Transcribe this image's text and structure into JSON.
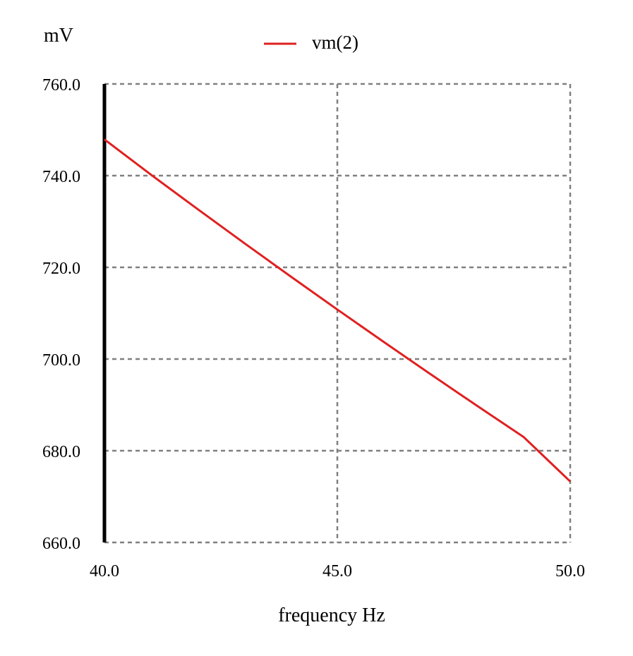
{
  "chart_data": {
    "type": "line",
    "xlabel": "frequency Hz",
    "ylabel": "mV",
    "xlim": [
      40,
      50
    ],
    "ylim": [
      660,
      760
    ],
    "x_ticks": [
      40,
      45,
      50
    ],
    "y_ticks": [
      660,
      680,
      700,
      720,
      740,
      760
    ],
    "x_tick_labels": [
      "40.0",
      "45.0",
      "50.0"
    ],
    "y_tick_labels": [
      "660.0",
      "680.0",
      "700.0",
      "720.0",
      "740.0",
      "760.0"
    ],
    "grid": true,
    "legend_position": "top-center",
    "series": [
      {
        "name": "vm(2)",
        "color": "#e02020",
        "x": [
          40,
          41,
          42,
          43,
          44,
          45,
          46,
          47,
          48,
          49,
          50
        ],
        "y": [
          747.9,
          740.2,
          732.7,
          725.3,
          718.0,
          710.8,
          703.7,
          696.7,
          689.8,
          683.0,
          673.3
        ]
      }
    ]
  }
}
